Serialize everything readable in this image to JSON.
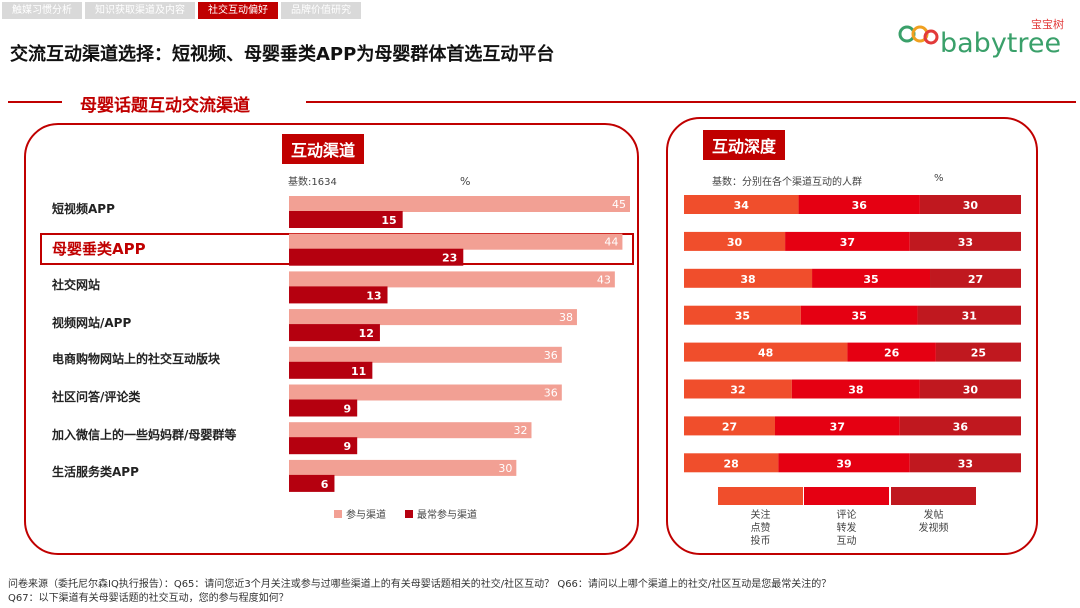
{
  "nav": {
    "tabs": [
      {
        "label": "触媒习惯分析"
      },
      {
        "label": "知识获取渠道及内容"
      },
      {
        "label": "社交互动偏好"
      },
      {
        "label": "品牌价值研究"
      }
    ],
    "active_index": 2
  },
  "logo": {
    "cn": "宝宝树",
    "en": "babytree"
  },
  "headline": "交流互动渠道选择：短视频、母婴垂类APP为母婴群体首选互动平台",
  "section_title": "母婴话题互动交流渠道",
  "colors": {
    "accent": "#c00000",
    "light_bar": "#f2a094",
    "dark_bar": "#b5000f",
    "seg1": "#f04e2c",
    "seg2": "#e50012",
    "seg3": "#c0181f"
  },
  "chart_data": [
    {
      "type": "bar",
      "title": "互动渠道",
      "base_note": "基数:1634",
      "unit": "%",
      "highlight_index": 1,
      "categories": [
        "短视频APP",
        "母婴垂类APP",
        "社交网站",
        "视频网站/APP",
        "电商购物网站上的社交互动版块",
        "社区问答/评论类",
        "加入微信上的一些妈妈群/母婴群等",
        "生活服务类APP"
      ],
      "series": [
        {
          "name": "参与渠道",
          "values": [
            45,
            44,
            43,
            38,
            36,
            36,
            32,
            30
          ]
        },
        {
          "name": "最常参与渠道",
          "values": [
            15,
            23,
            13,
            12,
            11,
            9,
            9,
            6
          ]
        }
      ],
      "xlim": [
        0,
        45
      ],
      "legend_position": "bottom"
    },
    {
      "type": "bar",
      "stacked": true,
      "title": "互动深度",
      "base_note": "基数：分别在各个渠道互动的人群",
      "unit": "%",
      "series": [
        {
          "name": "关注 点赞 投币",
          "values": [
            34,
            30,
            38,
            35,
            48,
            32,
            27,
            28
          ]
        },
        {
          "name": "评论 转发 互动",
          "values": [
            36,
            37,
            35,
            35,
            26,
            38,
            37,
            39
          ]
        },
        {
          "name": "发帖 发视频",
          "values": [
            30,
            33,
            27,
            31,
            25,
            30,
            36,
            33
          ]
        }
      ],
      "legend_lines": [
        [
          "关注",
          "点赞",
          "投币"
        ],
        [
          "评论",
          "转发",
          "互动"
        ],
        [
          "发帖",
          "发视频"
        ]
      ],
      "legend_position": "bottom"
    }
  ],
  "source": {
    "line1": "问卷来源（委托尼尔森IQ执行报告）：Q65：请问您近3个月关注或参与过哪些渠道上的有关母婴话题相关的社交/社区互动？ Q66：请问以上哪个渠道上的社交/社区互动是您最常关注的？",
    "line2": "Q67：以下渠道有关母婴话题的社交互动，您的参与程度如何？"
  }
}
